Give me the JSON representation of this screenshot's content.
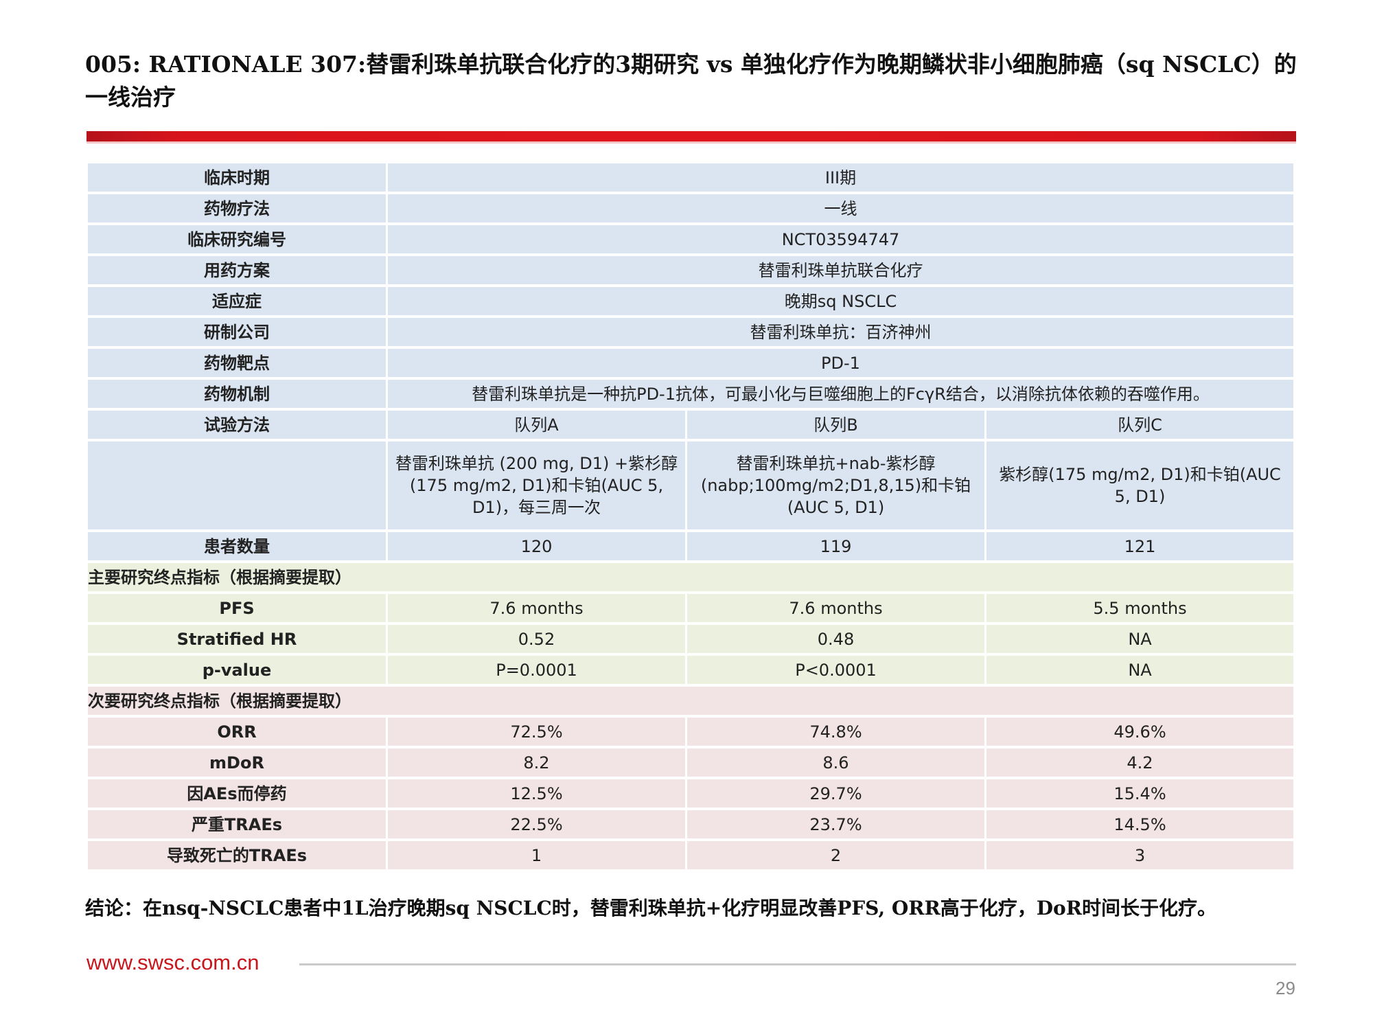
{
  "title": "005: RATIONALE 307:替雷利珠单抗联合化疗的3期研究 vs 单独化疗作为晚期鳞状非小细胞肺癌（sq NSCLC）的一线治疗",
  "colors": {
    "header_bar": "#e0161e",
    "blue_rows": "#dbe5f1",
    "green_rows": "#ebf1de",
    "pink_rows": "#f2e3e4",
    "website": "#c8161d"
  },
  "table": {
    "rows": [
      {
        "label": "临床时期",
        "value": "III期"
      },
      {
        "label": "药物疗法",
        "value": "一线"
      },
      {
        "label": "临床研究编号",
        "value": "NCT03594747"
      },
      {
        "label": "用药方案",
        "value": "替雷利珠单抗联合化疗"
      },
      {
        "label": "适应症",
        "value": "晚期sq NSCLC"
      },
      {
        "label": "研制公司",
        "value": "替雷利珠单抗：百济神州"
      },
      {
        "label": "药物靶点",
        "value": "PD-1"
      },
      {
        "label": "药物机制",
        "value": "替雷利珠单抗是一种抗PD-1抗体，可最小化与巨噬细胞上的FcγR结合，以消除抗体依赖的吞噬作用。"
      }
    ],
    "method_label": "试验方法",
    "cohorts": [
      "队列A",
      "队列B",
      "队列C"
    ],
    "regimens": [
      "替雷利珠单抗 (200 mg, D1) +紫杉醇(175 mg/m2, D1)和卡铂(AUC 5, D1)，每三周一次",
      "替雷利珠单抗+nab-紫杉醇(nabp;100mg/m2;D1,8,15)和卡铂(AUC 5, D1)",
      "紫杉醇(175 mg/m2, D1)和卡铂(AUC 5, D1)"
    ],
    "patients_label": "患者数量",
    "patients": [
      "120",
      "119",
      "121"
    ],
    "primary_section": "主要研究终点指标（根据摘要提取）",
    "primary": [
      {
        "label": "PFS",
        "values": [
          "7.6 months",
          "7.6 months",
          "5.5 months"
        ]
      },
      {
        "label": "Stratified HR",
        "values": [
          "0.52",
          "0.48",
          "NA"
        ]
      },
      {
        "label": "p-value",
        "values": [
          "P=0.0001",
          "P<0.0001",
          "NA"
        ]
      }
    ],
    "secondary_section": "次要研究终点指标（根据摘要提取）",
    "secondary": [
      {
        "label": "ORR",
        "values": [
          "72.5%",
          "74.8%",
          "49.6%"
        ]
      },
      {
        "label": "mDoR",
        "values": [
          "8.2",
          "8.6",
          "4.2"
        ]
      },
      {
        "label": "因AEs而停药",
        "values": [
          "12.5%",
          "29.7%",
          "15.4%"
        ]
      },
      {
        "label": "严重TRAEs",
        "values": [
          "22.5%",
          "23.7%",
          "14.5%"
        ]
      },
      {
        "label": "导致死亡的TRAEs",
        "values": [
          "1",
          "2",
          "3"
        ]
      }
    ]
  },
  "conclusion": "结论：在nsq-NSCLC患者中1L治疗晚期sq NSCLC时，替雷利珠单抗+化疗明显改善PFS, ORR高于化疗，DoR时间长于化疗。",
  "footer": {
    "website": "www.swsc.com.cn",
    "page": "29"
  }
}
